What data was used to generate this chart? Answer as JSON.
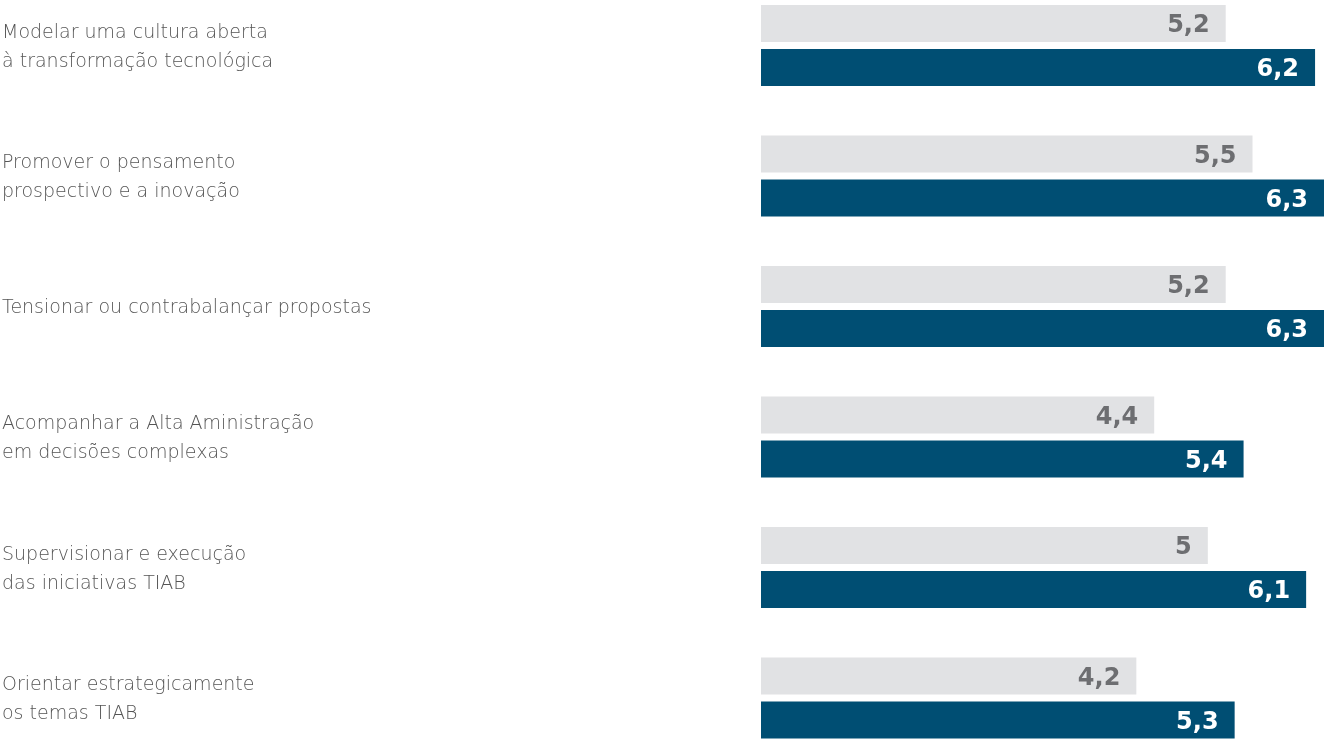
{
  "chart_data": {
    "type": "bar",
    "orientation": "horizontal",
    "categories": [
      "Modelar uma cultura aberta\nà transformação tecnológica",
      "Promover o pensamento\nprospectivo e a inovação",
      "Tensionar ou contrabalançar propostas",
      "Acompanhar a Alta Aministração\nem decisões complexas",
      "Supervisionar e execução\ndas iniciativas TIAB",
      "Orientar estrategicamente\nos temas TIAB"
    ],
    "series": [
      {
        "color": "#e1e2e4",
        "values": [
          5.2,
          5.5,
          5.2,
          4.4,
          5,
          4.2
        ],
        "value_labels": [
          "5,2",
          "5,5",
          "5,2",
          "4,4",
          "5",
          "4,2"
        ]
      },
      {
        "color": "#004e73",
        "values": [
          6.2,
          6.3,
          6.3,
          5.4,
          6.1,
          5.3
        ],
        "value_labels": [
          "6,2",
          "6,3",
          "6,3",
          "5,4",
          "6,1",
          "5,3"
        ]
      }
    ]
  }
}
